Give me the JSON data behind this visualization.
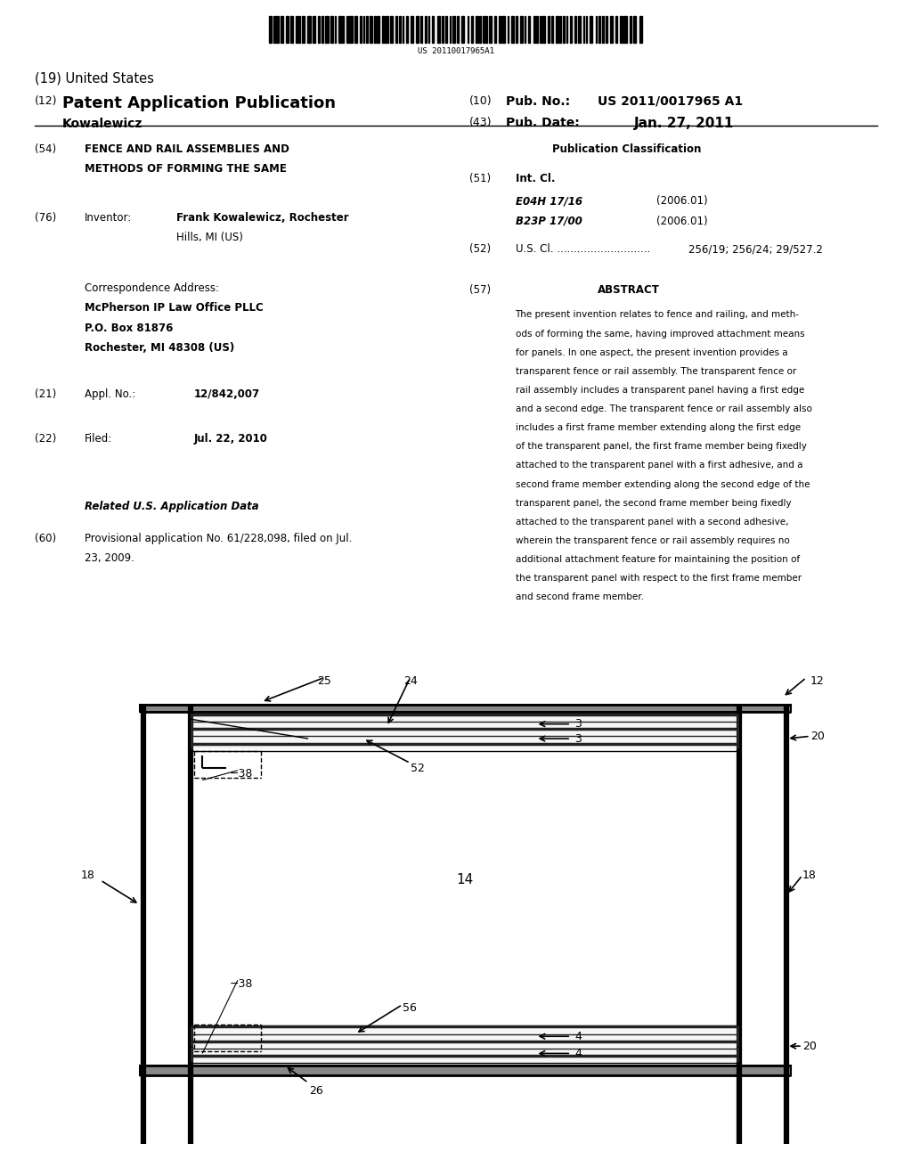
{
  "bg_color": "#ffffff",
  "barcode_text": "US 20110017965A1",
  "header_left_line1": "(19) United States",
  "header_left_line2_num": "(12)",
  "header_left_line2_text": "Patent Application Publication",
  "header_left_line3": "Kowalewicz",
  "header_right_num1": "(10)",
  "header_right_key1": "Pub. No.:",
  "header_right_val1": "US 2011/0017965 A1",
  "header_right_num2": "(43)",
  "header_right_key2": "Pub. Date:",
  "header_right_val2": "Jan. 27, 2011",
  "section54_title1": "FENCE AND RAIL ASSEMBLIES AND",
  "section54_title2": "METHODS OF FORMING THE SAME",
  "section76_val1": "Frank Kowalewicz, Rochester",
  "section76_val2": "Hills, MI (US)",
  "corr_line1": "Correspondence Address:",
  "corr_line2": "McPherson IP Law Office PLLC",
  "corr_line3": "P.O. Box 81876",
  "corr_line4": "Rochester, MI 48308 (US)",
  "section21_val": "12/842,007",
  "section22_val": "Jul. 22, 2010",
  "related_title": "Related U.S. Application Data",
  "section60_line1": "Provisional application No. 61/228,098, filed on Jul.",
  "section60_line2": "23, 2009.",
  "pub_class_title": "Publication Classification",
  "int_cl_line1_code": "E04H 17/16",
  "int_cl_line1_year": "(2006.01)",
  "int_cl_line2_code": "B23P 17/00",
  "int_cl_line2_year": "(2006.01)",
  "section52_dots": "U.S. Cl. ............................",
  "section52_val": "256/19; 256/24; 29/527.2",
  "abstract_lines": [
    "The present invention relates to fence and railing, and meth-",
    "ods of forming the same, having improved attachment means",
    "for panels. In one aspect, the present invention provides a",
    "transparent fence or rail assembly. The transparent fence or",
    "rail assembly includes a transparent panel having a first edge",
    "and a second edge. The transparent fence or rail assembly also",
    "includes a first frame member extending along the first edge",
    "of the transparent panel, the first frame member being fixedly",
    "attached to the transparent panel with a first adhesive, and a",
    "second frame member extending along the second edge of the",
    "transparent panel, the second frame member being fixedly",
    "attached to the transparent panel with a second adhesive,",
    "wherein the transparent fence or rail assembly requires no",
    "additional attachment feature for maintaining the position of",
    "the transparent panel with respect to the first frame member",
    "and second frame member."
  ]
}
